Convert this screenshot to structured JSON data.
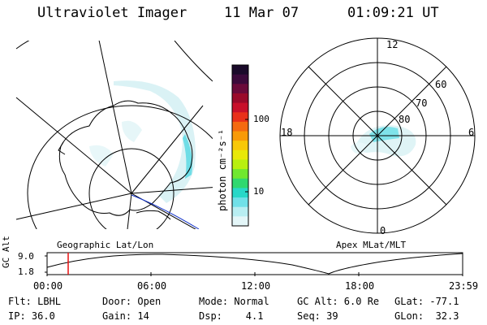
{
  "header": {
    "instrument": "Ultraviolet Imager",
    "date": "11 Mar 07",
    "time": "01:09:21 UT"
  },
  "colorbar": {
    "unit_label": "photon cm⁻²s⁻¹",
    "ticks": [
      "100",
      "10"
    ],
    "colors": [
      "#1a0a2a",
      "#3b0a3b",
      "#6a0a3a",
      "#9a0a2a",
      "#c8102a",
      "#e8301a",
      "#f46a10",
      "#f89a08",
      "#f8c808",
      "#e8e808",
      "#b8f010",
      "#70e830",
      "#30d870",
      "#28d8c8",
      "#70e0e8",
      "#b8eef2",
      "#e4f6f8"
    ]
  },
  "left_map": {
    "label": "Geographic Lat/Lon"
  },
  "right_map": {
    "label": "Apex MLat/MLT",
    "mlt_labels": {
      "top": "12",
      "bottom": "0",
      "left": "18",
      "right": "6"
    },
    "lat_labels": [
      "60",
      "70",
      "80"
    ]
  },
  "altitude_plot": {
    "ylabel": "GC Alt",
    "yticks": [
      "9.0",
      "1.8"
    ],
    "xticks": [
      "00:00",
      "06:00",
      "12:00",
      "18:00",
      "23:59"
    ],
    "current_time_marker": "01:09"
  },
  "status": {
    "row1": [
      {
        "key": "flt",
        "text": "Flt: LBHL"
      },
      {
        "key": "door",
        "text": "Door: Open"
      },
      {
        "key": "mode",
        "text": "Mode: Normal"
      },
      {
        "key": "gcalt",
        "text": "GC Alt: 6.0 Re"
      },
      {
        "key": "glat",
        "text": "GLat: -77.1"
      }
    ],
    "row2": [
      {
        "key": "ip",
        "text": "IP: 36.0"
      },
      {
        "key": "gain",
        "text": "Gain: 14"
      },
      {
        "key": "dsp",
        "text": "Dsp:    4.1"
      },
      {
        "key": "seq",
        "text": "Seq: 39"
      },
      {
        "key": "glon",
        "text": "GLon:  32.3"
      }
    ]
  }
}
